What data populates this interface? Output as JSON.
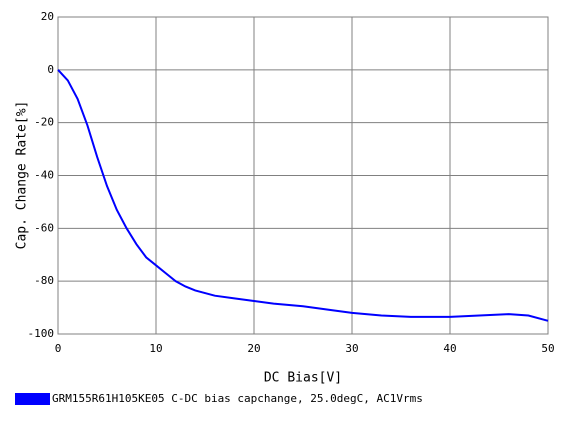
{
  "chart_data": {
    "type": "line",
    "x_label": "DC Bias[V]",
    "y_label": "Cap. Change Rate[%]",
    "x": [
      0,
      1,
      2,
      3,
      4,
      5,
      6,
      7,
      8,
      9,
      10,
      11,
      12,
      13,
      14,
      15,
      16,
      18,
      20,
      22,
      25,
      28,
      30,
      33,
      36,
      40,
      43,
      46,
      48,
      50
    ],
    "series": [
      {
        "name": "GRM155R61H105KE05 C-DC bias capchange, 25.0degC, AC1Vrms",
        "color": "#0000ff",
        "values": [
          0,
          -4,
          -11,
          -21,
          -33,
          -44,
          -53,
          -60,
          -66,
          -71,
          -74,
          -77,
          -80,
          -82,
          -83.5,
          -84.5,
          -85.5,
          -86.5,
          -87.5,
          -88.5,
          -89.5,
          -91,
          -92,
          -93,
          -93.5,
          -93.5,
          -93,
          -92.5,
          -93,
          -95
        ]
      }
    ],
    "xlim": [
      0,
      50
    ],
    "xticks": [
      0,
      10,
      20,
      30,
      40,
      50
    ],
    "ylim": [
      -100,
      20
    ],
    "yticks": [
      -100,
      -80,
      -60,
      -40,
      -20,
      0,
      20
    ],
    "grid": true
  }
}
